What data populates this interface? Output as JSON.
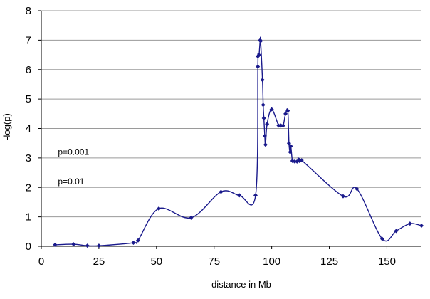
{
  "chart_data": {
    "type": "line",
    "title": "",
    "xlabel": "distance in Mb",
    "ylabel": "-log(p)",
    "xlim": [
      0,
      165
    ],
    "ylim": [
      0,
      8
    ],
    "xticks": [
      0,
      25,
      50,
      75,
      100,
      125,
      150
    ],
    "yticks": [
      0,
      1,
      2,
      3,
      4,
      5,
      6,
      7,
      8
    ],
    "grid": "horizontal",
    "legend": "none",
    "line_color": "#1a1a8c",
    "annotations": [
      {
        "text": "p=0.001",
        "x": 6,
        "y": 3.1
      },
      {
        "text": "p=0.01",
        "x": 6,
        "y": 2.1
      }
    ],
    "series": [
      {
        "points": [
          [
            6,
            0.05
          ],
          [
            14,
            0.07
          ],
          [
            20,
            0.02
          ],
          [
            25,
            0.02
          ],
          [
            40,
            0.12
          ],
          [
            42,
            0.2
          ],
          [
            51,
            1.28
          ],
          [
            65,
            0.97
          ],
          [
            78,
            1.85
          ],
          [
            86,
            1.73
          ],
          [
            93,
            1.73
          ],
          [
            94,
            6.1
          ],
          [
            94,
            6.45
          ],
          [
            94.5,
            6.5
          ],
          [
            95,
            7.0
          ],
          [
            95.2,
            6.97
          ],
          [
            96,
            5.65
          ],
          [
            96.3,
            4.8
          ],
          [
            96.6,
            4.35
          ],
          [
            97,
            3.75
          ],
          [
            97.3,
            3.45
          ],
          [
            98,
            4.15
          ],
          [
            100,
            4.65
          ],
          [
            103,
            4.1
          ],
          [
            104,
            4.1
          ],
          [
            105,
            4.1
          ],
          [
            106,
            4.5
          ],
          [
            107,
            4.6
          ],
          [
            107.5,
            3.5
          ],
          [
            108,
            3.2
          ],
          [
            108.3,
            3.4
          ],
          [
            109,
            2.9
          ],
          [
            110,
            2.88
          ],
          [
            111,
            2.88
          ],
          [
            112,
            2.9
          ],
          [
            113,
            2.92
          ],
          [
            131,
            1.7
          ],
          [
            137,
            1.95
          ],
          [
            148,
            0.25
          ],
          [
            154,
            0.52
          ],
          [
            160,
            0.77
          ],
          [
            165,
            0.7
          ]
        ]
      }
    ]
  }
}
